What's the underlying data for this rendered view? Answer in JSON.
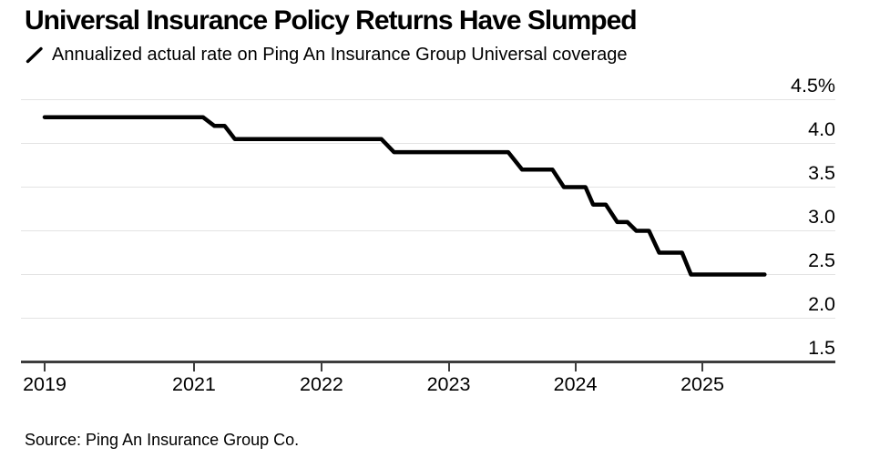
{
  "source": "Source: Ping An Insurance Group Co.",
  "colors": {
    "background": "#ffffff",
    "line": "#000000",
    "gridline": "#e3e3e3",
    "axis": "#3d3d3d",
    "text": "#000000"
  },
  "chart_data": {
    "type": "line",
    "style": "step",
    "title": "Universal Insurance Policy Returns Have Slumped",
    "legend": "Annualized actual rate on Ping An Insurance Group Universal coverage",
    "unit": "%",
    "grid": "horizontal-only",
    "legend_position": "top-left",
    "y_axis_side": "right",
    "ylim": [
      1.5,
      4.5
    ],
    "y_ticks": [
      4.5,
      4.0,
      3.5,
      3.0,
      2.5,
      2.0,
      1.5
    ],
    "y_tick_labels": [
      "4.5%",
      "4.0",
      "3.5",
      "3.0",
      "2.5",
      "2.0",
      "1.5"
    ],
    "x_axis_note": "time axis is compressed before 2021; no 2020 tick shown",
    "x_ticks": [
      {
        "label": "2019",
        "year": 2019,
        "pos": 0.0291
      },
      {
        "label": "2021",
        "year": 2021,
        "pos": 0.2125
      },
      {
        "label": "2022",
        "year": 2022,
        "pos": 0.3691
      },
      {
        "label": "2023",
        "year": 2023,
        "pos": 0.5252
      },
      {
        "label": "2024",
        "year": 2024,
        "pos": 0.6807
      },
      {
        "label": "2025",
        "year": 2025,
        "pos": 0.8367
      }
    ],
    "steps": [
      {
        "from": 2019.0,
        "to": 2021.07,
        "value": 4.3
      },
      {
        "from": 2021.16,
        "to": 2021.24,
        "value": 4.2
      },
      {
        "from": 2021.32,
        "to": 2022.47,
        "value": 4.05
      },
      {
        "from": 2022.57,
        "to": 2023.47,
        "value": 3.9
      },
      {
        "from": 2023.58,
        "to": 2023.82,
        "value": 3.7
      },
      {
        "from": 2023.91,
        "to": 2024.08,
        "value": 3.5
      },
      {
        "from": 2024.14,
        "to": 2024.24,
        "value": 3.3
      },
      {
        "from": 2024.33,
        "to": 2024.41,
        "value": 3.1
      },
      {
        "from": 2024.48,
        "to": 2024.58,
        "value": 3.0
      },
      {
        "from": 2024.66,
        "to": 2024.84,
        "value": 2.75
      },
      {
        "from": 2024.91,
        "to": 2025.49,
        "value": 2.5
      }
    ]
  }
}
